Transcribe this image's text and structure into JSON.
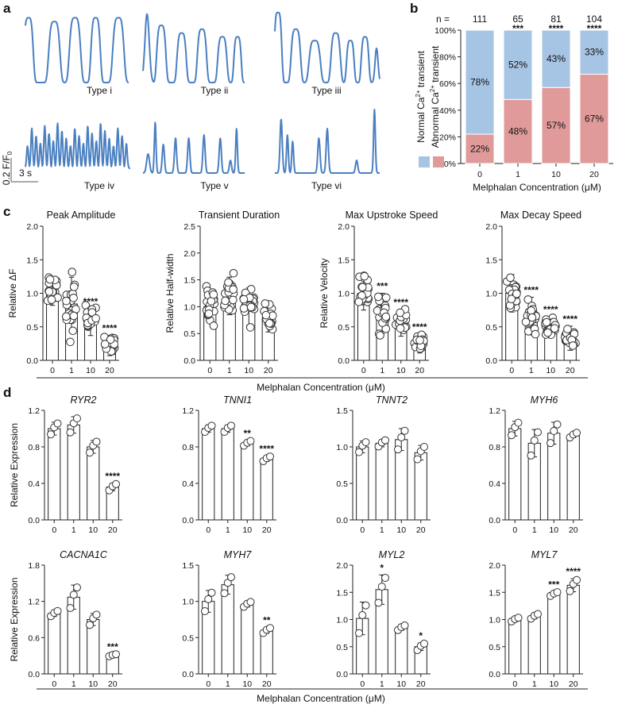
{
  "panel_labels": {
    "a": "a",
    "b": "b",
    "c": "c",
    "d": "d"
  },
  "panel_a": {
    "types": [
      "Type i",
      "Type ii",
      "Type iii",
      "Type iv",
      "Type v",
      "Type vi"
    ],
    "scale_y": "0.2 F/F",
    "scale_y_sub": "0",
    "scale_x": "3 s",
    "trace_color": "#4a7fc1"
  },
  "chart_data": [
    {
      "id": "b",
      "type": "bar",
      "stacked": true,
      "categories": [
        "0",
        "1",
        "10",
        "20"
      ],
      "n_prefix": "n =",
      "n": [
        "111",
        "65",
        "81",
        "104"
      ],
      "significance": [
        "",
        "***",
        "****",
        "****"
      ],
      "series": [
        {
          "name": "Abnormal Ca2+ transient",
          "color": "#e09a9a",
          "values": [
            22,
            48,
            57,
            67
          ],
          "labels": [
            "22%",
            "48%",
            "57%",
            "67%"
          ]
        },
        {
          "name": "Normal Ca2+ transient",
          "color": "#a6c4e4",
          "values": [
            78,
            52,
            43,
            33
          ],
          "labels": [
            "78%",
            "52%",
            "43%",
            "33%"
          ]
        }
      ],
      "yticks": [
        "0%",
        "20%",
        "40%",
        "60%",
        "80%",
        "100%"
      ],
      "ylim": [
        0,
        100
      ],
      "xlabel": "Melphalan Concentration (μM)",
      "legend_placement": "left, vertical"
    },
    {
      "id": "c1",
      "type": "bar_scatter",
      "title": "Peak Amplitude",
      "ylabel": "Relative ΔF",
      "categories": [
        "0",
        "1",
        "10",
        "20"
      ],
      "means": [
        1.0,
        0.84,
        0.57,
        0.22
      ],
      "sd": [
        0.18,
        0.4,
        0.2,
        0.15
      ],
      "significance": [
        "",
        "",
        "****",
        "****"
      ],
      "ylim": [
        0,
        2.0
      ],
      "yticks": [
        "0.0",
        "0.5",
        "1.0",
        "1.5",
        "2.0"
      ]
    },
    {
      "id": "c2",
      "type": "bar_scatter",
      "title": "Transient Duration",
      "ylabel": "Relative Half-width",
      "categories": [
        "0",
        "1",
        "10",
        "20"
      ],
      "means": [
        1.0,
        1.2,
        1.0,
        0.78
      ],
      "sd": [
        0.3,
        0.35,
        0.35,
        0.25
      ],
      "significance": [
        "",
        "",
        "",
        ""
      ],
      "ylim": [
        0,
        2.5
      ],
      "yticks": [
        "0.0",
        "0.5",
        "1.0",
        "1.5",
        "2.0",
        "2.5"
      ]
    },
    {
      "id": "c3",
      "type": "bar_scatter",
      "title": "Max Upstroke Speed",
      "ylabel": "Relative Velocity",
      "categories": [
        "0",
        "1",
        "10",
        "20"
      ],
      "means": [
        1.0,
        0.7,
        0.56,
        0.25
      ],
      "sd": [
        0.25,
        0.3,
        0.2,
        0.14
      ],
      "significance": [
        "",
        "***",
        "****",
        "****"
      ],
      "ylim": [
        0,
        2.0
      ],
      "yticks": [
        "0.0",
        "0.5",
        "1.0",
        "1.5",
        "2.0"
      ]
    },
    {
      "id": "c4",
      "type": "bar_scatter",
      "title": "Max Decay Speed",
      "ylabel": "",
      "categories": [
        "0",
        "1",
        "10",
        "20"
      ],
      "means": [
        1.0,
        0.66,
        0.5,
        0.33
      ],
      "sd": [
        0.28,
        0.28,
        0.15,
        0.18
      ],
      "significance": [
        "",
        "****",
        "****",
        "****"
      ],
      "ylim": [
        0,
        2.0
      ],
      "yticks": [
        "0.0",
        "0.5",
        "1.0",
        "1.5",
        "2.0"
      ]
    },
    {
      "id": "d1",
      "type": "bar_points",
      "title": "RYR2",
      "ylabel": "Relative Expression",
      "categories": [
        "0",
        "1",
        "10",
        "20"
      ],
      "means": [
        1.0,
        1.04,
        0.8,
        0.36
      ],
      "sd": [
        0.07,
        0.09,
        0.07,
        0.04
      ],
      "significance": [
        "",
        "",
        "",
        "****"
      ],
      "ylim": [
        0,
        1.2
      ],
      "yticks": [
        "0.0",
        "0.4",
        "0.8",
        "1.2"
      ]
    },
    {
      "id": "d2",
      "type": "bar_points",
      "title": "TNNI1",
      "ylabel": "",
      "categories": [
        "0",
        "1",
        "10",
        "20"
      ],
      "means": [
        1.0,
        1.0,
        0.84,
        0.67
      ],
      "sd": [
        0.04,
        0.04,
        0.03,
        0.03
      ],
      "significance": [
        "",
        "",
        "**",
        "****"
      ],
      "ylim": [
        0,
        1.2
      ],
      "yticks": [
        "0.0",
        "0.4",
        "0.8",
        "1.2"
      ]
    },
    {
      "id": "d3",
      "type": "bar_points",
      "title": "TNNT2",
      "ylabel": "",
      "categories": [
        "0",
        "1",
        "10",
        "20"
      ],
      "means": [
        1.0,
        1.05,
        1.1,
        0.92
      ],
      "sd": [
        0.08,
        0.05,
        0.15,
        0.1
      ],
      "significance": [
        "",
        "",
        "",
        ""
      ],
      "ylim": [
        0,
        1.5
      ],
      "yticks": [
        "0.0",
        "0.5",
        "1.0",
        "1.5"
      ]
    },
    {
      "id": "d4",
      "type": "bar_points",
      "title": "MYH6",
      "ylabel": "",
      "categories": [
        "0",
        "1",
        "10",
        "20"
      ],
      "means": [
        1.0,
        0.84,
        0.95,
        0.93
      ],
      "sd": [
        0.08,
        0.15,
        0.12,
        0.03
      ],
      "significance": [
        "",
        "",
        "",
        ""
      ],
      "ylim": [
        0,
        1.2
      ],
      "yticks": [
        "0.0",
        "0.4",
        "0.8",
        "1.2"
      ]
    },
    {
      "id": "d5",
      "type": "bar_points",
      "title": "CACNA1C",
      "ylabel": "Relative Expression",
      "categories": [
        "0",
        "1",
        "10",
        "20"
      ],
      "means": [
        1.0,
        1.27,
        0.9,
        0.31
      ],
      "sd": [
        0.05,
        0.2,
        0.1,
        0.02
      ],
      "significance": [
        "",
        "",
        "",
        "***"
      ],
      "ylim": [
        0,
        1.8
      ],
      "yticks": [
        "0.0",
        "0.6",
        "1.2",
        "1.8"
      ]
    },
    {
      "id": "d6",
      "type": "bar_points",
      "title": "MYH7",
      "ylabel": "",
      "categories": [
        "0",
        "1",
        "10",
        "20"
      ],
      "means": [
        1.0,
        1.23,
        0.96,
        0.6
      ],
      "sd": [
        0.15,
        0.13,
        0.04,
        0.04
      ],
      "significance": [
        "",
        "",
        "",
        "**"
      ],
      "ylim": [
        0,
        1.5
      ],
      "yticks": [
        "0.0",
        "0.5",
        "1.0",
        "1.5"
      ]
    },
    {
      "id": "d7",
      "type": "bar_points",
      "title": "MYL2",
      "ylabel": "",
      "categories": [
        "0",
        "1",
        "10",
        "20"
      ],
      "means": [
        1.02,
        1.55,
        0.85,
        0.5
      ],
      "sd": [
        0.3,
        0.27,
        0.05,
        0.07
      ],
      "significance": [
        "",
        "*",
        "",
        "*"
      ],
      "ylim": [
        0,
        2.0
      ],
      "yticks": [
        "0.0",
        "0.5",
        "1.0",
        "1.5",
        "2.0"
      ]
    },
    {
      "id": "d8",
      "type": "bar_points",
      "title": "MYL7",
      "ylabel": "",
      "categories": [
        "0",
        "1",
        "10",
        "20"
      ],
      "means": [
        1.0,
        1.06,
        1.47,
        1.63
      ],
      "sd": [
        0.04,
        0.05,
        0.04,
        0.12
      ],
      "significance": [
        "",
        "",
        "***",
        "****"
      ],
      "ylim": [
        0,
        2.0
      ],
      "yticks": [
        "0.0",
        "0.5",
        "1.0",
        "1.5",
        "2.0"
      ]
    }
  ],
  "xlabels": {
    "c": "Melphalan Concentration (μM)",
    "d": "Melphalan Concentration (μM)"
  }
}
